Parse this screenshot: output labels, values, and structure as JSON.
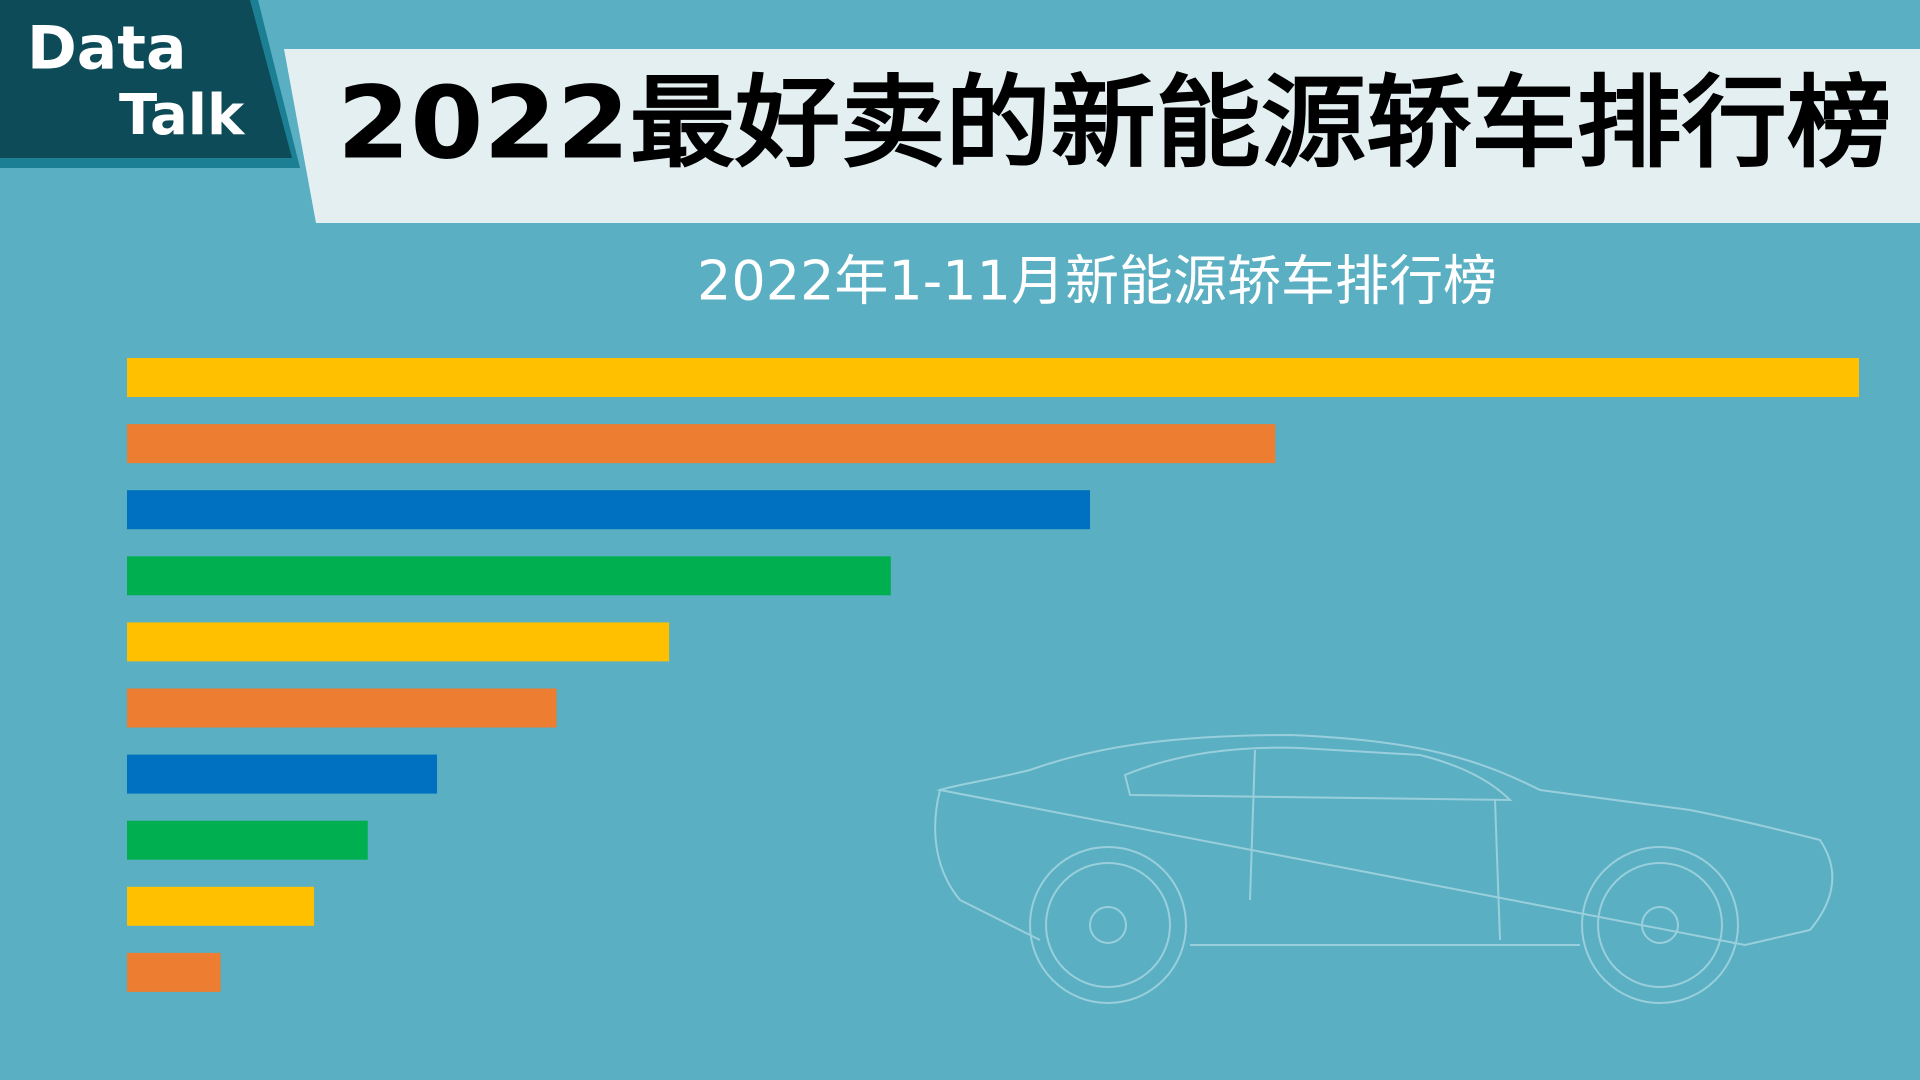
{
  "chart_data": {
    "type": "bar",
    "logo": [
      "Data",
      "Talk"
    ],
    "title": "2022最好卖的新能源轿车排行榜",
    "subtitle": "2022年1-11月新能源轿车排行榜",
    "orientation": "horizontal",
    "categories": [
      null,
      null,
      null,
      null,
      null,
      null,
      null,
      null,
      null,
      null
    ],
    "values": [
      100,
      66.3,
      55.6,
      44.1,
      31.3,
      24.8,
      17.9,
      13.9,
      10.8,
      5.4
    ],
    "colors": [
      "#FFC000",
      "#ED7D31",
      "#0070C0",
      "#00B050",
      "#FFC000",
      "#ED7D31",
      "#0070C0",
      "#00B050",
      "#FFC000",
      "#ED7D31"
    ],
    "xlim": [
      0,
      100
    ]
  }
}
